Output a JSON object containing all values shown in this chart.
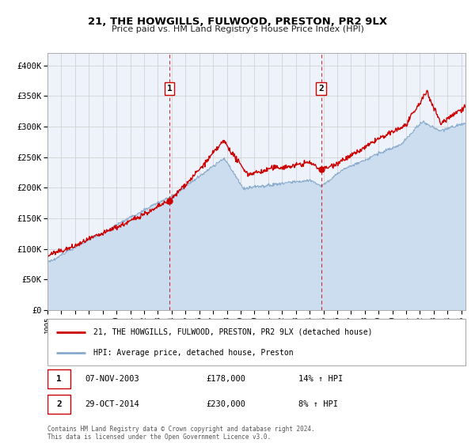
{
  "title": "21, THE HOWGILLS, FULWOOD, PRESTON, PR2 9LX",
  "subtitle": "Price paid vs. HM Land Registry's House Price Index (HPI)",
  "x_start": 1995.0,
  "x_end": 2025.3,
  "y_lim": [
    0,
    420000
  ],
  "y_ticks": [
    0,
    50000,
    100000,
    150000,
    200000,
    250000,
    300000,
    350000,
    400000
  ],
  "y_tick_labels": [
    "£0",
    "£50K",
    "£100K",
    "£150K",
    "£200K",
    "£250K",
    "£300K",
    "£350K",
    "£400K"
  ],
  "sale1_x": 2003.85,
  "sale1_y": 178000,
  "sale1_label": "1",
  "sale1_date": "07-NOV-2003",
  "sale1_price": "£178,000",
  "sale1_hpi": "14% ↑ HPI",
  "sale2_x": 2014.83,
  "sale2_y": 230000,
  "sale2_label": "2",
  "sale2_date": "29-OCT-2014",
  "sale2_price": "£230,000",
  "sale2_hpi": "8% ↑ HPI",
  "red_line_color": "#cc0000",
  "blue_line_color": "#88aacc",
  "blue_fill_color": "#ccddef",
  "vline_color": "#cc0000",
  "marker_color": "#cc0000",
  "grid_color": "#cccccc",
  "background_color": "#eef2fb",
  "legend_label_red": "21, THE HOWGILLS, FULWOOD, PRESTON, PR2 9LX (detached house)",
  "legend_label_blue": "HPI: Average price, detached house, Preston",
  "footer": "Contains HM Land Registry data © Crown copyright and database right 2024.\nThis data is licensed under the Open Government Licence v3.0.",
  "x_tick_years": [
    1995,
    1996,
    1997,
    1998,
    1999,
    2000,
    2001,
    2002,
    2003,
    2004,
    2005,
    2006,
    2007,
    2008,
    2009,
    2010,
    2011,
    2012,
    2013,
    2014,
    2015,
    2016,
    2017,
    2018,
    2019,
    2020,
    2021,
    2022,
    2023,
    2024,
    2025
  ]
}
